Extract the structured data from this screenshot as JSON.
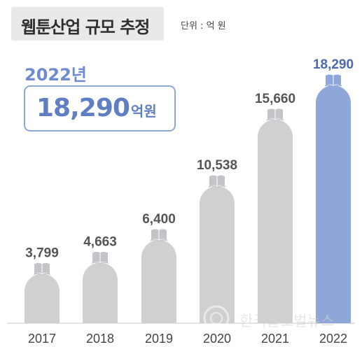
{
  "header": {
    "title": "웹툰산업 규모 추정",
    "unit_note": "단위 : 억 원"
  },
  "highlight": {
    "year": "2022년",
    "value": "18,290",
    "unit": "억원"
  },
  "watermark": "한국글로벌뉴스",
  "colors": {
    "bar_default": "#d0d0d3",
    "bar_highlight": "#8ea6d8",
    "value_default": "#555555",
    "value_highlight": "#4b69b0"
  },
  "chart_data": {
    "type": "bar",
    "categories": [
      "2017",
      "2018",
      "2019",
      "2020",
      "2021",
      "2022"
    ],
    "values": [
      3799,
      4663,
      6400,
      10538,
      15660,
      18290
    ],
    "value_labels": [
      "3,799",
      "4,663",
      "6,400",
      "10,538",
      "15,660",
      "18,290"
    ],
    "highlight_index": 5,
    "title": "웹툰산업 규모 추정",
    "ylabel": "",
    "xlabel": "",
    "grid": false
  }
}
